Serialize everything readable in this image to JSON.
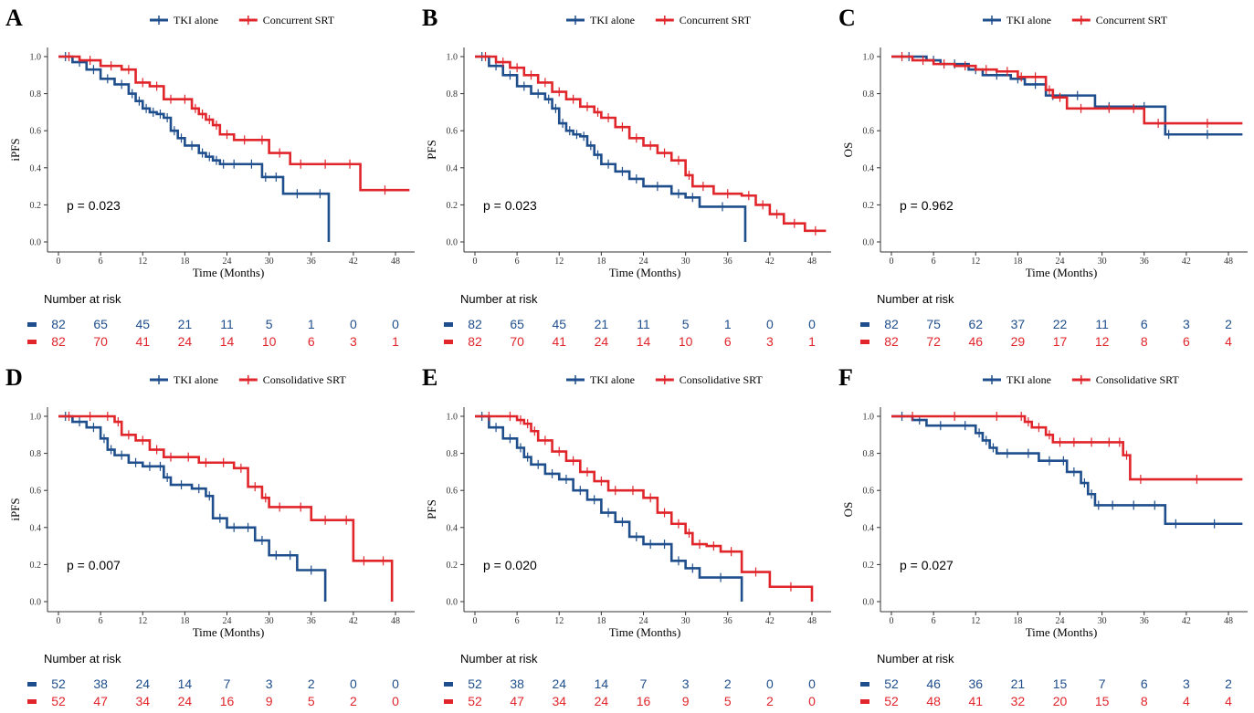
{
  "colors": {
    "tki": "#1f4e8c",
    "srt": "#e0252b"
  },
  "chart_data": [
    {
      "type": "line",
      "panel": "A",
      "legend": [
        "TKI alone",
        "Concurrent SRT"
      ],
      "xlabel": "Time (Months)",
      "ylabel": "iPFS",
      "xticks": [
        "0",
        "6",
        "12",
        "18",
        "24",
        "30",
        "36",
        "42",
        "48"
      ],
      "yticks": [
        "0.0",
        "0.2",
        "0.4",
        "0.6",
        "0.8",
        "1.0"
      ],
      "xlim": [
        0,
        50
      ],
      "ylim": [
        0,
        1
      ],
      "pvalue": "p = 0.023",
      "risk_title": "Number at risk",
      "risk": [
        [
          "82",
          "65",
          "45",
          "21",
          "11",
          "5",
          "1",
          "0",
          "0"
        ],
        [
          "82",
          "70",
          "41",
          "24",
          "14",
          "10",
          "6",
          "3",
          "1"
        ]
      ],
      "series": [
        {
          "name": "TKI alone",
          "x": [
            0,
            2,
            4,
            6,
            8,
            10,
            11,
            12,
            13,
            14,
            15,
            16,
            17,
            18,
            20,
            21,
            22,
            23,
            24,
            26,
            29,
            30,
            32,
            36,
            38.5,
            38.5
          ],
          "y": [
            1,
            0.97,
            0.93,
            0.88,
            0.85,
            0.8,
            0.76,
            0.72,
            0.7,
            0.69,
            0.67,
            0.6,
            0.56,
            0.52,
            0.48,
            0.46,
            0.44,
            0.42,
            0.42,
            0.42,
            0.35,
            0.35,
            0.26,
            0.26,
            0.26,
            0
          ]
        },
        {
          "name": "Concurrent SRT",
          "x": [
            0,
            3,
            6,
            9,
            11,
            13,
            15,
            17,
            19,
            20,
            21,
            22,
            23,
            25,
            28,
            30,
            33,
            36,
            40,
            43,
            50
          ],
          "y": [
            1,
            0.98,
            0.95,
            0.93,
            0.86,
            0.84,
            0.77,
            0.77,
            0.72,
            0.69,
            0.66,
            0.63,
            0.58,
            0.55,
            0.55,
            0.48,
            0.42,
            0.42,
            0.42,
            0.28,
            0.28
          ]
        }
      ]
    },
    {
      "type": "line",
      "panel": "B",
      "legend": [
        "TKI alone",
        "Concurrent SRT"
      ],
      "xlabel": "Time (Months)",
      "ylabel": "PFS",
      "xticks": [
        "0",
        "6",
        "12",
        "18",
        "24",
        "30",
        "36",
        "42",
        "48"
      ],
      "yticks": [
        "0.0",
        "0.2",
        "0.4",
        "0.6",
        "0.8",
        "1.0"
      ],
      "xlim": [
        0,
        50
      ],
      "ylim": [
        0,
        1
      ],
      "pvalue": "p = 0.023",
      "risk_title": "Number at risk",
      "risk": [
        [
          "82",
          "65",
          "45",
          "21",
          "11",
          "5",
          "1",
          "0",
          "0"
        ],
        [
          "82",
          "70",
          "41",
          "24",
          "14",
          "10",
          "6",
          "3",
          "1"
        ]
      ],
      "series": [
        {
          "name": "TKI alone",
          "x": [
            0,
            2,
            4,
            6,
            8,
            10,
            11,
            12,
            13,
            14,
            15,
            16,
            17,
            18,
            20,
            22,
            24,
            28,
            30,
            32,
            38.5,
            38.5
          ],
          "y": [
            1,
            0.95,
            0.9,
            0.84,
            0.8,
            0.77,
            0.72,
            0.64,
            0.6,
            0.58,
            0.57,
            0.52,
            0.47,
            0.42,
            0.38,
            0.34,
            0.3,
            0.26,
            0.24,
            0.19,
            0.19,
            0
          ]
        },
        {
          "name": "Concurrent SRT",
          "x": [
            0,
            3,
            5,
            7,
            9,
            11,
            13,
            15,
            17,
            18,
            20,
            22,
            24,
            26,
            28,
            30,
            31,
            34,
            38,
            40,
            42,
            44,
            47,
            50
          ],
          "y": [
            1,
            0.97,
            0.94,
            0.9,
            0.86,
            0.81,
            0.77,
            0.73,
            0.7,
            0.67,
            0.62,
            0.56,
            0.52,
            0.48,
            0.44,
            0.36,
            0.3,
            0.26,
            0.25,
            0.2,
            0.15,
            0.1,
            0.06,
            0.06
          ]
        }
      ]
    },
    {
      "type": "line",
      "panel": "C",
      "legend": [
        "TKI alone",
        "Concurrent SRT"
      ],
      "xlabel": "Time (Months)",
      "ylabel": "OS",
      "xticks": [
        "0",
        "6",
        "12",
        "18",
        "24",
        "30",
        "36",
        "42",
        "48"
      ],
      "yticks": [
        "0.0",
        "0.2",
        "0.4",
        "0.6",
        "0.8",
        "1.0"
      ],
      "xlim": [
        0,
        50
      ],
      "ylim": [
        0,
        1
      ],
      "pvalue": "p = 0.962",
      "risk_title": "Number at risk",
      "risk": [
        [
          "82",
          "75",
          "62",
          "37",
          "22",
          "11",
          "6",
          "3",
          "2"
        ],
        [
          "82",
          "72",
          "46",
          "29",
          "17",
          "12",
          "8",
          "6",
          "4"
        ]
      ],
      "series": [
        {
          "name": "TKI alone",
          "x": [
            0,
            5,
            7,
            11,
            13,
            17,
            19,
            22,
            24,
            29,
            33,
            39,
            40,
            50
          ],
          "y": [
            1,
            0.98,
            0.96,
            0.93,
            0.9,
            0.88,
            0.85,
            0.79,
            0.79,
            0.73,
            0.73,
            0.58,
            0.58,
            0.58
          ]
        },
        {
          "name": "Concurrent SRT",
          "x": [
            0,
            3,
            6,
            9,
            12,
            15,
            18,
            19,
            22,
            23,
            25,
            29,
            33,
            36,
            40,
            50
          ],
          "y": [
            1,
            0.98,
            0.96,
            0.95,
            0.93,
            0.92,
            0.89,
            0.89,
            0.82,
            0.78,
            0.72,
            0.72,
            0.72,
            0.64,
            0.64,
            0.64
          ]
        }
      ]
    },
    {
      "type": "line",
      "panel": "D",
      "legend": [
        "TKI alone",
        "Consolidative SRT"
      ],
      "xlabel": "Time (Months)",
      "ylabel": "iPFS",
      "xticks": [
        "0",
        "6",
        "12",
        "18",
        "24",
        "30",
        "36",
        "42",
        "48"
      ],
      "yticks": [
        "0.0",
        "0.2",
        "0.4",
        "0.6",
        "0.8",
        "1.0"
      ],
      "xlim": [
        0,
        50
      ],
      "ylim": [
        0,
        1
      ],
      "pvalue": "p = 0.007",
      "risk_title": "Number at risk",
      "risk": [
        [
          "52",
          "38",
          "24",
          "14",
          "7",
          "3",
          "2",
          "0",
          "0"
        ],
        [
          "52",
          "47",
          "34",
          "24",
          "16",
          "9",
          "5",
          "2",
          "0"
        ]
      ],
      "series": [
        {
          "name": "TKI alone",
          "x": [
            0,
            2,
            4,
            6,
            7,
            8,
            10,
            12,
            14,
            15,
            16,
            19,
            21,
            22,
            24,
            26,
            28,
            30,
            32,
            34,
            38,
            38
          ],
          "y": [
            1,
            0.97,
            0.94,
            0.88,
            0.82,
            0.79,
            0.75,
            0.73,
            0.73,
            0.67,
            0.63,
            0.61,
            0.57,
            0.45,
            0.4,
            0.4,
            0.33,
            0.25,
            0.25,
            0.17,
            0.17,
            0
          ]
        },
        {
          "name": "Consolidative SRT",
          "x": [
            0,
            3,
            6,
            8,
            9,
            11,
            13,
            15,
            17,
            20,
            22,
            25,
            27,
            29,
            30,
            33,
            36,
            40,
            42,
            45,
            47.5,
            47.5
          ],
          "y": [
            1,
            1,
            1,
            0.97,
            0.9,
            0.87,
            0.82,
            0.78,
            0.78,
            0.75,
            0.75,
            0.72,
            0.62,
            0.56,
            0.51,
            0.51,
            0.44,
            0.44,
            0.22,
            0.22,
            0.22,
            0
          ]
        }
      ]
    },
    {
      "type": "line",
      "panel": "E",
      "legend": [
        "TKI alone",
        "Consolidative SRT"
      ],
      "xlabel": "Time (Months)",
      "ylabel": "PFS",
      "xticks": [
        "0",
        "6",
        "12",
        "18",
        "24",
        "30",
        "36",
        "42",
        "48"
      ],
      "yticks": [
        "0.0",
        "0.2",
        "0.4",
        "0.6",
        "0.8",
        "1.0"
      ],
      "xlim": [
        0,
        50
      ],
      "ylim": [
        0,
        1
      ],
      "pvalue": "p = 0.020",
      "risk_title": "Number at risk",
      "risk": [
        [
          "52",
          "38",
          "24",
          "14",
          "7",
          "3",
          "2",
          "0",
          "0"
        ],
        [
          "52",
          "47",
          "34",
          "24",
          "16",
          "9",
          "5",
          "2",
          "0"
        ]
      ],
      "series": [
        {
          "name": "TKI alone",
          "x": [
            0,
            2,
            4,
            6,
            7,
            8,
            10,
            12,
            14,
            16,
            18,
            20,
            22,
            24,
            26,
            28,
            30,
            32,
            38,
            38
          ],
          "y": [
            1,
            0.94,
            0.88,
            0.83,
            0.78,
            0.74,
            0.69,
            0.66,
            0.6,
            0.55,
            0.48,
            0.43,
            0.35,
            0.31,
            0.31,
            0.22,
            0.18,
            0.13,
            0.13,
            0
          ]
        },
        {
          "name": "Consolidative SRT",
          "x": [
            0,
            4,
            6,
            7,
            8,
            9,
            11,
            13,
            15,
            17,
            19,
            21,
            24,
            26,
            28,
            30,
            31,
            33,
            35,
            38,
            42,
            48,
            48
          ],
          "y": [
            1,
            1,
            0.98,
            0.96,
            0.92,
            0.87,
            0.81,
            0.76,
            0.7,
            0.65,
            0.6,
            0.6,
            0.56,
            0.48,
            0.42,
            0.37,
            0.31,
            0.3,
            0.27,
            0.16,
            0.08,
            0.08,
            0
          ]
        }
      ]
    },
    {
      "type": "line",
      "panel": "F",
      "legend": [
        "TKI alone",
        "Consolidative SRT"
      ],
      "xlabel": "Time (Months)",
      "ylabel": "OS",
      "xticks": [
        "0",
        "6",
        "12",
        "18",
        "24",
        "30",
        "36",
        "42",
        "48"
      ],
      "yticks": [
        "0.0",
        "0.2",
        "0.4",
        "0.6",
        "0.8",
        "1.0"
      ],
      "xlim": [
        0,
        50
      ],
      "ylim": [
        0,
        1
      ],
      "pvalue": "p = 0.027",
      "risk_title": "Number at risk",
      "risk": [
        [
          "52",
          "46",
          "36",
          "21",
          "15",
          "7",
          "6",
          "3",
          "2"
        ],
        [
          "52",
          "48",
          "41",
          "32",
          "20",
          "15",
          "8",
          "4",
          "4"
        ]
      ],
      "series": [
        {
          "name": "TKI alone",
          "x": [
            0,
            3,
            5,
            9,
            12,
            13,
            14,
            15,
            18,
            21,
            24,
            25,
            27,
            28,
            29,
            30,
            33,
            36,
            39,
            42,
            50
          ],
          "y": [
            1,
            0.98,
            0.95,
            0.95,
            0.91,
            0.87,
            0.83,
            0.8,
            0.8,
            0.76,
            0.76,
            0.7,
            0.64,
            0.58,
            0.52,
            0.52,
            0.52,
            0.52,
            0.42,
            0.42,
            0.42
          ]
        },
        {
          "name": "Consolidative SRT",
          "x": [
            0,
            6,
            12,
            18,
            19,
            20,
            22,
            23,
            25,
            27,
            30,
            32,
            33,
            34,
            37,
            50
          ],
          "y": [
            1,
            1,
            1,
            1,
            0.97,
            0.94,
            0.9,
            0.86,
            0.86,
            0.86,
            0.86,
            0.86,
            0.79,
            0.66,
            0.66,
            0.66
          ]
        }
      ]
    }
  ]
}
